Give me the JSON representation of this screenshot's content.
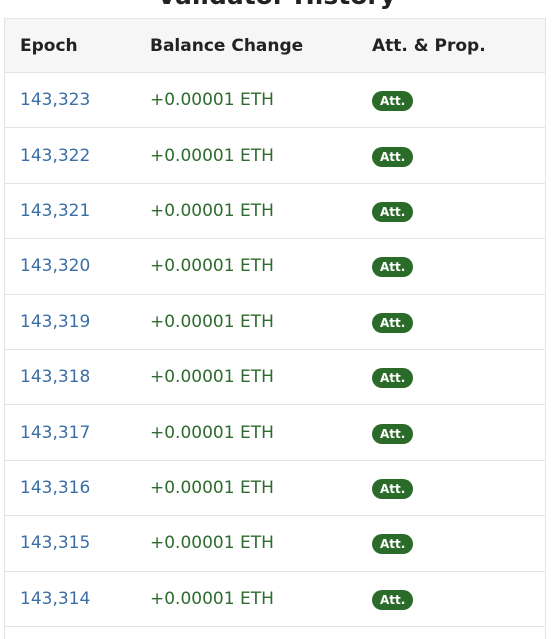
{
  "title": "Validator History",
  "table": {
    "headers": [
      "Epoch",
      "Balance Change",
      "Att. & Prop."
    ],
    "rows": [
      [
        "143,323",
        "+0.00001 ETH",
        "Att."
      ],
      [
        "143,322",
        "+0.00001 ETH",
        "Att."
      ],
      [
        "143,321",
        "+0.00001 ETH",
        "Att."
      ],
      [
        "143,320",
        "+0.00001 ETH",
        "Att."
      ],
      [
        "143,319",
        "+0.00001 ETH",
        "Att."
      ],
      [
        "143,318",
        "+0.00001 ETH",
        "Att."
      ],
      [
        "143,317",
        "+0.00001 ETH",
        "Att."
      ],
      [
        "143,316",
        "+0.00001 ETH",
        "Att."
      ],
      [
        "143,315",
        "+0.00001 ETH",
        "Att."
      ],
      [
        "143,314",
        "+0.00001 ETH",
        "Att."
      ]
    ]
  }
}
